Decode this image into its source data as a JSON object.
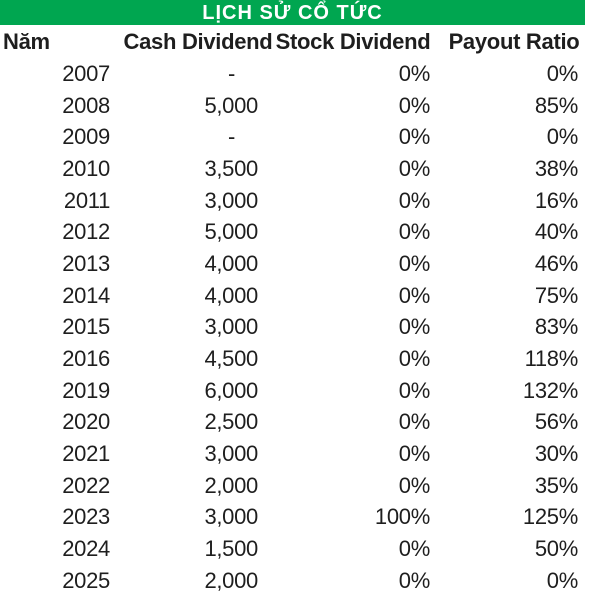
{
  "title": "LỊCH SỬ CỔ TỨC",
  "colors": {
    "title_bar_background": "#00A650",
    "title_text": "#FFFFFF",
    "body_text": "#1E1E1E",
    "page_background": "#FFFFFF"
  },
  "table": {
    "columns": [
      "Năm",
      "Cash Dividend",
      "Stock Dividend",
      "Payout Ratio"
    ],
    "rows": [
      {
        "year": "2007",
        "cash": "-",
        "stock": "0%",
        "payout": "0%"
      },
      {
        "year": "2008",
        "cash": "5,000",
        "stock": "0%",
        "payout": "85%"
      },
      {
        "year": "2009",
        "cash": "-",
        "stock": "0%",
        "payout": "0%"
      },
      {
        "year": "2010",
        "cash": "3,500",
        "stock": "0%",
        "payout": "38%"
      },
      {
        "year": "2011",
        "cash": "3,000",
        "stock": "0%",
        "payout": "16%"
      },
      {
        "year": "2012",
        "cash": "5,000",
        "stock": "0%",
        "payout": "40%"
      },
      {
        "year": "2013",
        "cash": "4,000",
        "stock": "0%",
        "payout": "46%"
      },
      {
        "year": "2014",
        "cash": "4,000",
        "stock": "0%",
        "payout": "75%"
      },
      {
        "year": "2015",
        "cash": "3,000",
        "stock": "0%",
        "payout": "83%"
      },
      {
        "year": "2016",
        "cash": "4,500",
        "stock": "0%",
        "payout": "118%"
      },
      {
        "year": "2019",
        "cash": "6,000",
        "stock": "0%",
        "payout": "132%"
      },
      {
        "year": "2020",
        "cash": "2,500",
        "stock": "0%",
        "payout": "56%"
      },
      {
        "year": "2021",
        "cash": "3,000",
        "stock": "0%",
        "payout": "30%"
      },
      {
        "year": "2022",
        "cash": "2,000",
        "stock": "0%",
        "payout": "35%"
      },
      {
        "year": "2023",
        "cash": "3,000",
        "stock": "100%",
        "payout": "125%"
      },
      {
        "year": "2024",
        "cash": "1,500",
        "stock": "0%",
        "payout": "50%"
      },
      {
        "year": "2025",
        "cash": "2,000",
        "stock": "0%",
        "payout": "0%"
      }
    ]
  },
  "chart_data": {
    "type": "table",
    "title": "LỊCH SỬ CỔ TỨC",
    "categories": [
      "2007",
      "2008",
      "2009",
      "2010",
      "2011",
      "2012",
      "2013",
      "2014",
      "2015",
      "2016",
      "2019",
      "2020",
      "2021",
      "2022",
      "2023",
      "2024",
      "2025"
    ],
    "series": [
      {
        "name": "Cash Dividend",
        "values": [
          null,
          5000,
          null,
          3500,
          3000,
          5000,
          4000,
          4000,
          3000,
          4500,
          6000,
          2500,
          3000,
          2000,
          3000,
          1500,
          2000
        ]
      },
      {
        "name": "Stock Dividend",
        "values": [
          0,
          0,
          0,
          0,
          0,
          0,
          0,
          0,
          0,
          0,
          0,
          0,
          0,
          0,
          100,
          0,
          0
        ]
      },
      {
        "name": "Payout Ratio",
        "values": [
          0,
          85,
          0,
          38,
          16,
          40,
          46,
          75,
          83,
          118,
          132,
          56,
          30,
          35,
          125,
          50,
          0
        ]
      }
    ],
    "layout": {
      "header_fill": "#00A650",
      "grid": false,
      "legend_position": "none"
    }
  }
}
